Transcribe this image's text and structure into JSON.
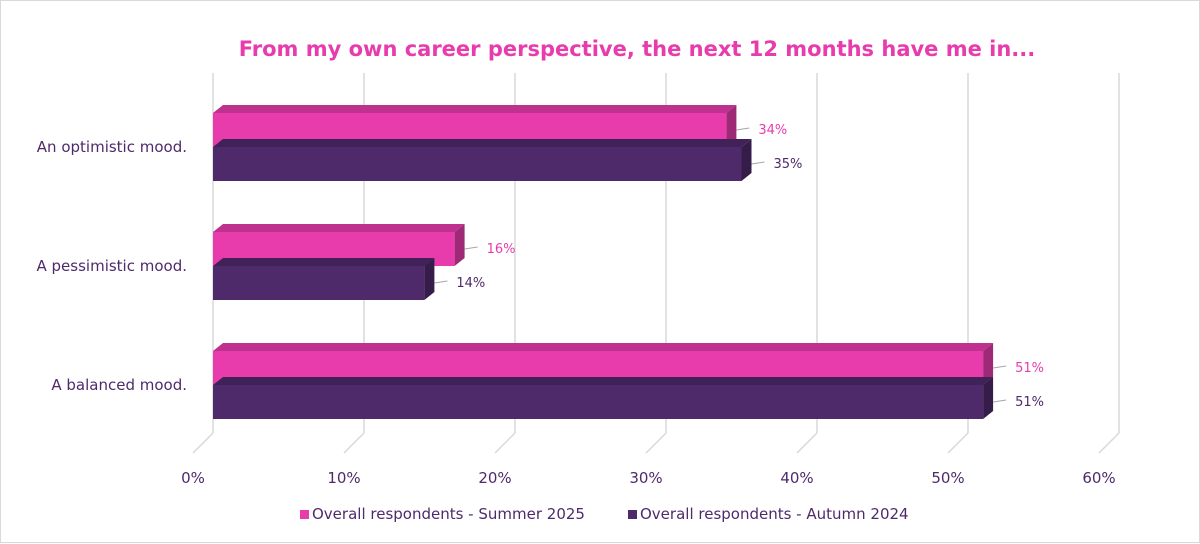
{
  "chart_data": {
    "type": "bar",
    "orientation": "horizontal",
    "style": "3d",
    "title": "From my own career perspective, the next 12 months have me in...",
    "categories": [
      "An optimistic mood.",
      "A pessimistic mood.",
      "A balanced mood."
    ],
    "series": [
      {
        "name": "Overall respondents - Summer 2025",
        "values": [
          34,
          16,
          51
        ],
        "labels": [
          "34%",
          "16%",
          "51%"
        ],
        "color": "#e83cad"
      },
      {
        "name": "Overall respondents - Autumn 2024",
        "values": [
          35,
          14,
          51
        ],
        "labels": [
          "35%",
          "14%",
          "51%"
        ],
        "color": "#4f2a6b"
      }
    ],
    "xlim": [
      0,
      60
    ],
    "xticks": [
      "0%",
      "10%",
      "20%",
      "30%",
      "40%",
      "50%",
      "60%"
    ],
    "grid": true,
    "legend": "bottom",
    "colors": {
      "title": "#e83cad",
      "text": "#4f2a6b",
      "gridline": "#d9d9d9"
    }
  }
}
